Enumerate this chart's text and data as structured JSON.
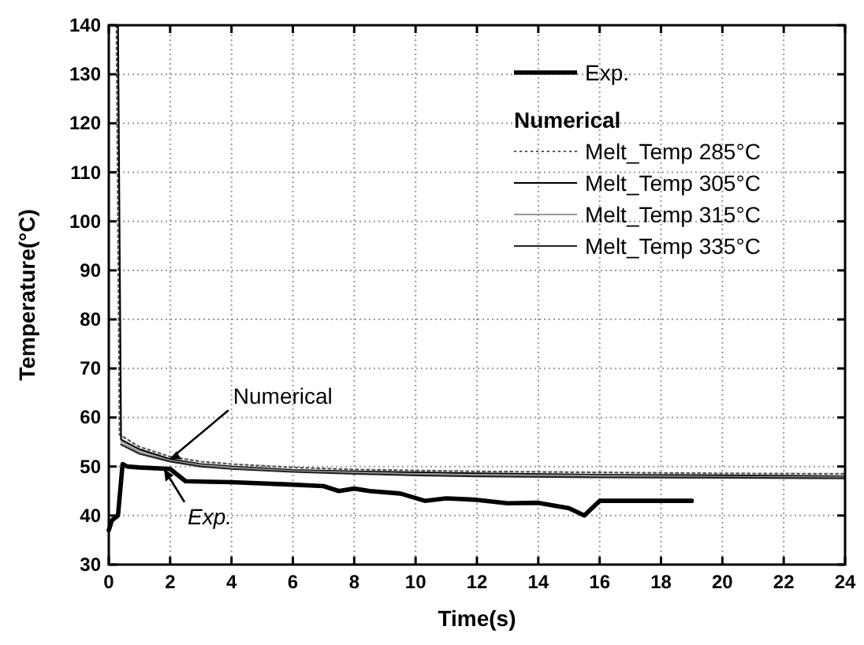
{
  "chart_data": {
    "type": "line",
    "xlabel": "Time(s)",
    "ylabel": "Temperature(°C)",
    "xlim": [
      0,
      24
    ],
    "ylim": [
      30,
      140
    ],
    "xticks": [
      0,
      2,
      4,
      6,
      8,
      10,
      12,
      14,
      16,
      18,
      20,
      22,
      24
    ],
    "yticks": [
      30,
      40,
      50,
      60,
      70,
      80,
      90,
      100,
      110,
      120,
      130,
      140
    ],
    "grid": true,
    "legend": "top right",
    "legend_title": "Numerical",
    "annotations": [
      {
        "text": "Numerical",
        "x": 2,
        "y": 51.5
      },
      {
        "text": "Exp.",
        "x": 1.8,
        "y": 49.5
      }
    ],
    "series": [
      {
        "name": "Exp.",
        "color": "#000000",
        "line_style": "solid",
        "x": [
          0,
          0.1,
          0.3,
          0.45,
          0.6,
          1,
          2,
          2.5,
          4,
          6,
          7,
          7.5,
          8,
          8.5,
          9.5,
          10.3,
          11,
          12,
          13,
          14,
          15,
          15.5,
          16,
          17,
          19
        ],
        "values": [
          37,
          39,
          40,
          50.5,
          50,
          49.8,
          49.5,
          47,
          46.8,
          46.3,
          46,
          45,
          45.5,
          45,
          44.5,
          43,
          43.5,
          43.2,
          42.5,
          42.6,
          41.5,
          40,
          43,
          43,
          43
        ]
      },
      {
        "name": "Melt_Temp 285°C",
        "color": "#555555",
        "line_style": "dotted",
        "x": [
          0.25,
          0.35,
          1,
          2,
          3,
          4,
          6,
          8,
          10,
          12,
          16,
          20,
          24
        ],
        "values": [
          140,
          56.5,
          54,
          52,
          51,
          50.5,
          49.8,
          49.4,
          49.2,
          49,
          48.8,
          48.6,
          48.5
        ]
      },
      {
        "name": "Melt_Temp 305°C",
        "color": "#000000",
        "line_style": "solid",
        "x": [
          0.3,
          0.4,
          1,
          2,
          3,
          4,
          6,
          8,
          10,
          12,
          16,
          20,
          24
        ],
        "values": [
          140,
          55.5,
          53.5,
          51.5,
          50.5,
          50,
          49.3,
          49,
          48.8,
          48.6,
          48.3,
          48.2,
          48
        ]
      },
      {
        "name": "Melt_Temp 315°C",
        "color": "#999999",
        "line_style": "solid",
        "x": [
          0.4,
          1,
          2,
          3,
          4,
          6,
          8,
          10,
          12,
          16,
          20,
          24
        ],
        "values": [
          55,
          53,
          51.2,
          50.3,
          49.8,
          49.1,
          48.8,
          48.5,
          48.3,
          48.1,
          47.9,
          47.8
        ]
      },
      {
        "name": "Melt_Temp 335°C",
        "color": "#222222",
        "line_style": "solid",
        "x": [
          0.4,
          1,
          2,
          3,
          4,
          6,
          8,
          10,
          12,
          16,
          20,
          24
        ],
        "values": [
          54.5,
          52.6,
          51,
          50,
          49.5,
          48.9,
          48.5,
          48.2,
          48,
          47.8,
          47.7,
          47.6
        ]
      }
    ]
  }
}
